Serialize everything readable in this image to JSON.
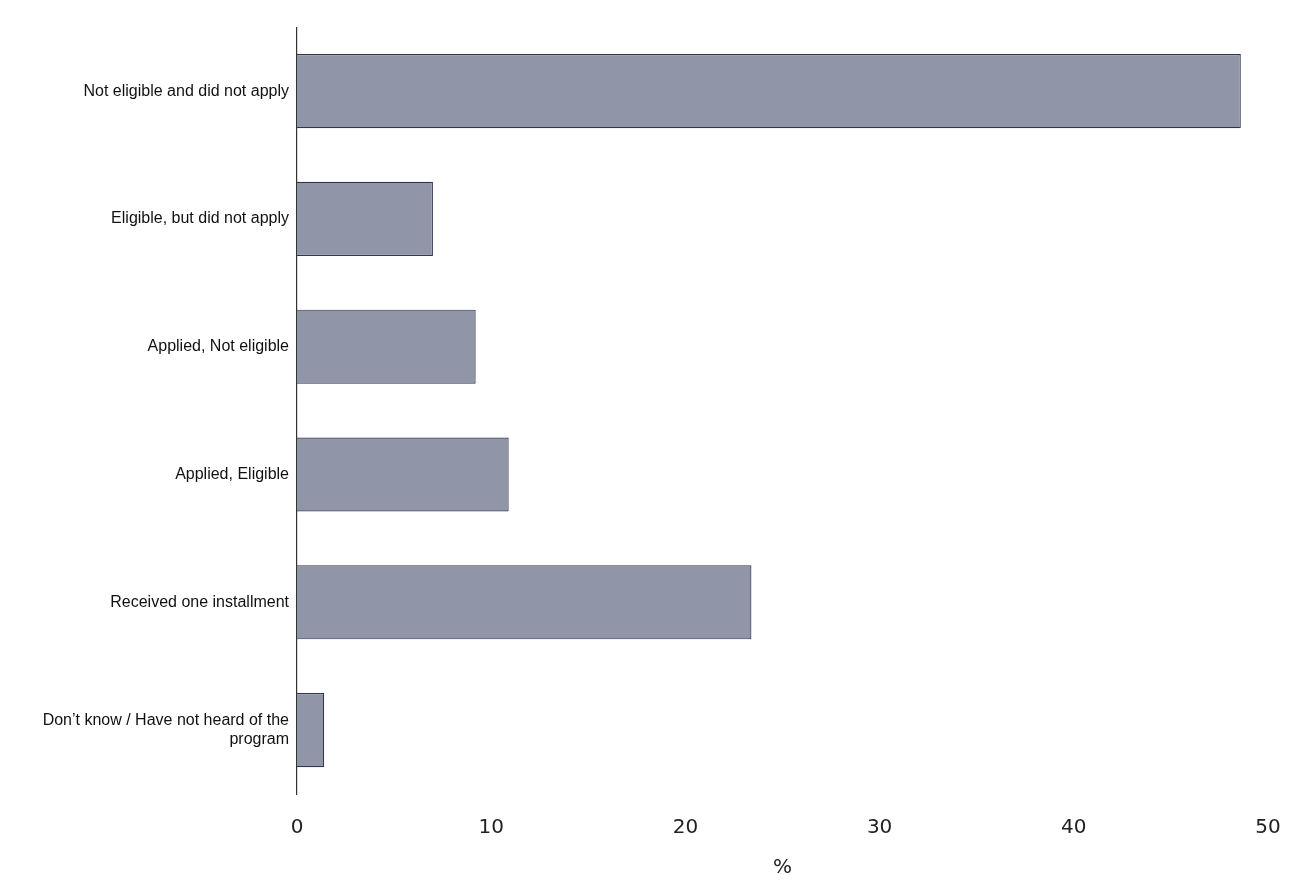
{
  "chart_data": {
    "type": "bar",
    "orientation": "horizontal",
    "xlabel": "%",
    "categories": [
      "Not eligible and did not apply",
      "Eligible, but did not apply",
      "Applied, Not eligible",
      "Applied, Eligible",
      "Received one installment",
      "Don’t know / Have not heard of the program"
    ],
    "values": [
      48.6,
      7.0,
      9.2,
      10.9,
      23.4,
      1.4
    ],
    "color": "#9096a8",
    "xlim": [
      0,
      50
    ],
    "xticks": [
      0,
      10,
      20,
      30,
      40,
      50
    ]
  }
}
